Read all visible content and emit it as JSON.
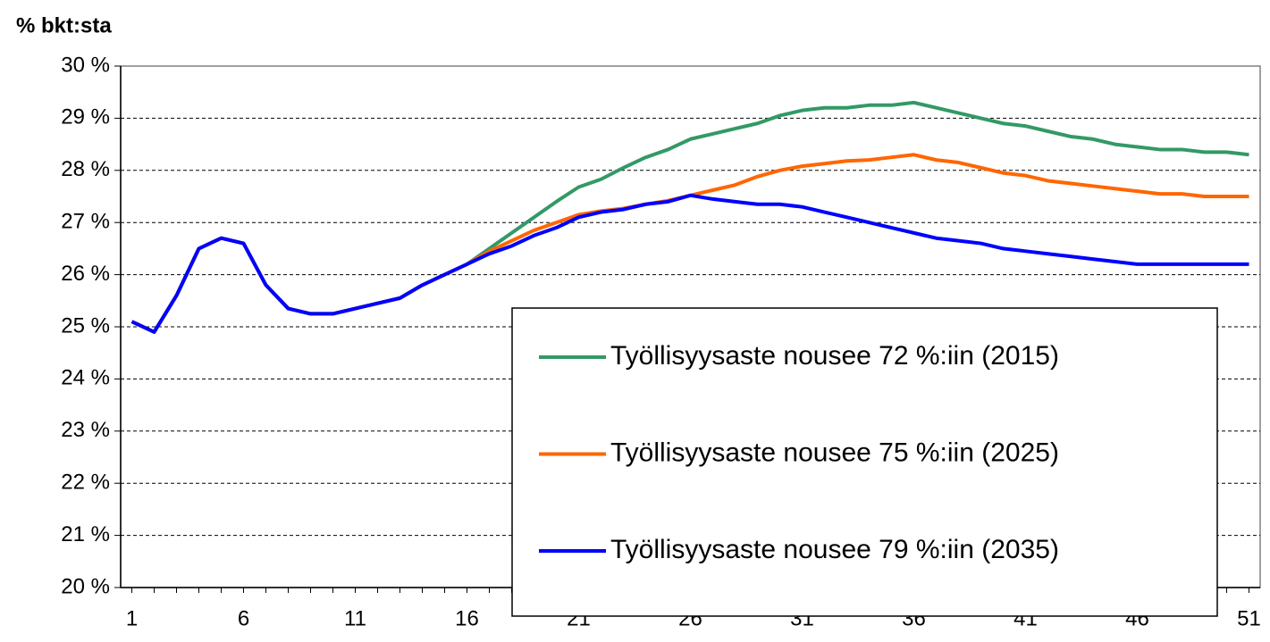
{
  "chart_data": {
    "type": "line",
    "y_label": "% bkt:sta",
    "x": [
      1,
      2,
      3,
      4,
      5,
      6,
      7,
      8,
      9,
      10,
      11,
      12,
      13,
      14,
      15,
      16,
      17,
      18,
      19,
      20,
      21,
      22,
      23,
      24,
      25,
      26,
      27,
      28,
      29,
      30,
      31,
      32,
      33,
      34,
      35,
      36,
      37,
      38,
      39,
      40,
      41,
      42,
      43,
      44,
      45,
      46,
      47,
      48,
      49,
      50,
      51
    ],
    "xlim": [
      0.5,
      51.5
    ],
    "xticks": [
      1,
      6,
      11,
      16,
      21,
      26,
      31,
      36,
      41,
      46,
      51
    ],
    "ylim": [
      20,
      30
    ],
    "yticks": [
      {
        "value": 20,
        "label": "20 %"
      },
      {
        "value": 21,
        "label": "21 %"
      },
      {
        "value": 22,
        "label": "22 %"
      },
      {
        "value": 23,
        "label": "23 %"
      },
      {
        "value": 24,
        "label": "24 %"
      },
      {
        "value": 25,
        "label": "25 %"
      },
      {
        "value": 26,
        "label": "26 %"
      },
      {
        "value": 27,
        "label": "27 %"
      },
      {
        "value": 28,
        "label": "28 %"
      },
      {
        "value": 29,
        "label": "29 %"
      },
      {
        "value": 30,
        "label": "30 %"
      }
    ],
    "grid": true,
    "legend": "lower right",
    "series": [
      {
        "name": "Työllisyysaste nousee 72 %:iin (2015)",
        "color": "#339966",
        "values": [
          25.1,
          24.9,
          25.6,
          26.5,
          26.7,
          26.6,
          25.8,
          25.35,
          25.25,
          25.25,
          25.35,
          25.45,
          25.55,
          25.8,
          26.0,
          26.2,
          26.5,
          26.8,
          27.1,
          27.4,
          27.68,
          27.83,
          28.05,
          28.25,
          28.4,
          28.6,
          28.7,
          28.8,
          28.9,
          29.05,
          29.15,
          29.2,
          29.2,
          29.25,
          29.25,
          29.3,
          29.2,
          29.1,
          29.0,
          28.9,
          28.85,
          28.75,
          28.65,
          28.6,
          28.5,
          28.45,
          28.4,
          28.4,
          28.35,
          28.35,
          28.3
        ]
      },
      {
        "name": "Työllisyysaste nousee 75 %:iin (2025)",
        "color": "#ff6600",
        "values": [
          25.1,
          24.9,
          25.6,
          26.5,
          26.7,
          26.6,
          25.8,
          25.35,
          25.25,
          25.25,
          25.35,
          25.45,
          25.55,
          25.8,
          26.0,
          26.2,
          26.45,
          26.65,
          26.85,
          27.0,
          27.15,
          27.22,
          27.27,
          27.35,
          27.42,
          27.52,
          27.62,
          27.72,
          27.88,
          28.0,
          28.08,
          28.13,
          28.18,
          28.2,
          28.25,
          28.3,
          28.2,
          28.15,
          28.05,
          27.95,
          27.9,
          27.8,
          27.75,
          27.7,
          27.65,
          27.6,
          27.55,
          27.55,
          27.5,
          27.5,
          27.5
        ]
      },
      {
        "name": "Työllisyysaste nousee 79 %:iin (2035)",
        "color": "#0000ff",
        "values": [
          25.1,
          24.9,
          25.6,
          26.5,
          26.7,
          26.6,
          25.8,
          25.35,
          25.25,
          25.25,
          25.35,
          25.45,
          25.55,
          25.8,
          26.0,
          26.2,
          26.4,
          26.55,
          26.75,
          26.9,
          27.1,
          27.2,
          27.25,
          27.35,
          27.4,
          27.52,
          27.45,
          27.4,
          27.35,
          27.35,
          27.3,
          27.2,
          27.1,
          27.0,
          26.9,
          26.8,
          26.7,
          26.65,
          26.6,
          26.5,
          26.45,
          26.4,
          26.35,
          26.3,
          26.25,
          26.2,
          26.2,
          26.2,
          26.2,
          26.2,
          26.2
        ]
      }
    ]
  }
}
